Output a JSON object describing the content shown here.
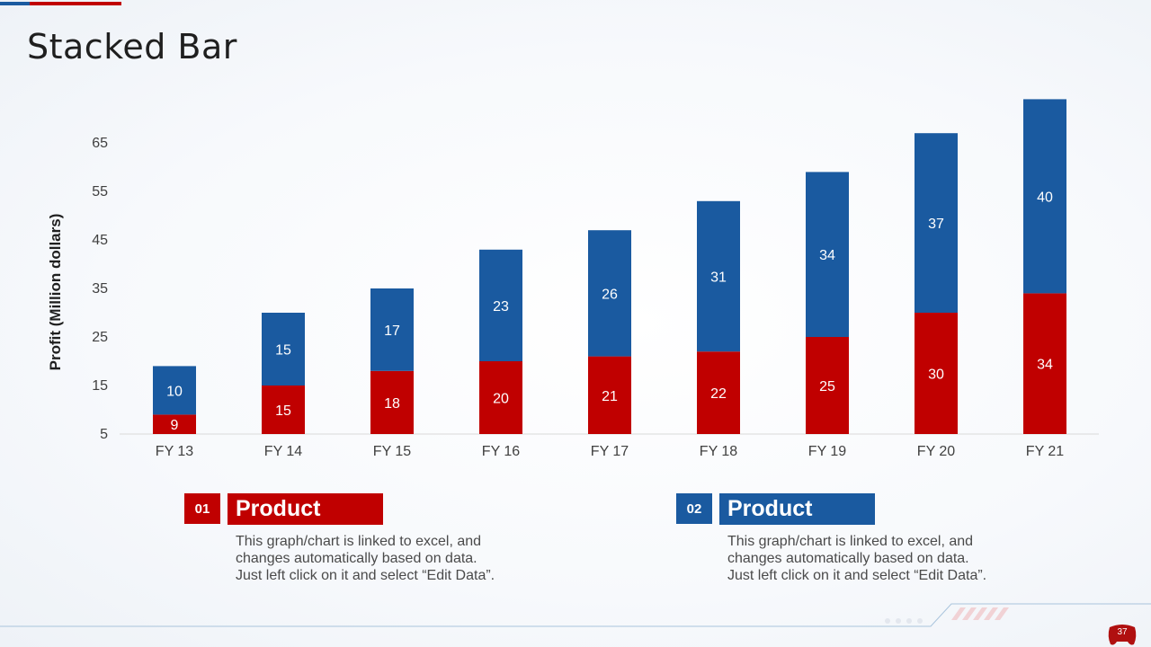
{
  "page": {
    "title": "Stacked Bar",
    "page_number": "37"
  },
  "colors": {
    "series_1": "#c00000",
    "series_2": "#1a5aa0",
    "accent_blue": "#1a5aa0",
    "accent_red": "#c00000"
  },
  "chart_data": {
    "type": "bar",
    "stacked": true,
    "title": "",
    "xlabel": "",
    "ylabel": "Profit  (Million dollars)",
    "categories": [
      "FY 13",
      "FY 14",
      "FY 15",
      "FY 16",
      "FY 17",
      "FY 18",
      "FY 19",
      "FY 20",
      "FY 21"
    ],
    "series": [
      {
        "name": "Product 01",
        "color": "#c00000",
        "values": [
          9,
          15,
          18,
          20,
          21,
          22,
          25,
          30,
          34
        ]
      },
      {
        "name": "Product 02",
        "color": "#1a5aa0",
        "values": [
          10,
          15,
          17,
          23,
          26,
          31,
          34,
          37,
          40
        ]
      }
    ],
    "y_ticks": [
      5,
      15,
      25,
      35,
      45,
      55,
      65
    ],
    "ylim": [
      5,
      70
    ],
    "grid": false,
    "legend": "none"
  },
  "cards": [
    {
      "number": "01",
      "title": "Product",
      "lines": [
        "This graph/chart is linked to excel, and",
        "changes automatically based on data.",
        "Just left click on it and select “Edit Data”."
      ]
    },
    {
      "number": "02",
      "title": "Product",
      "lines": [
        "This graph/chart is linked to excel, and",
        "changes automatically based on data.",
        "Just left click on it and select “Edit Data”."
      ]
    }
  ]
}
